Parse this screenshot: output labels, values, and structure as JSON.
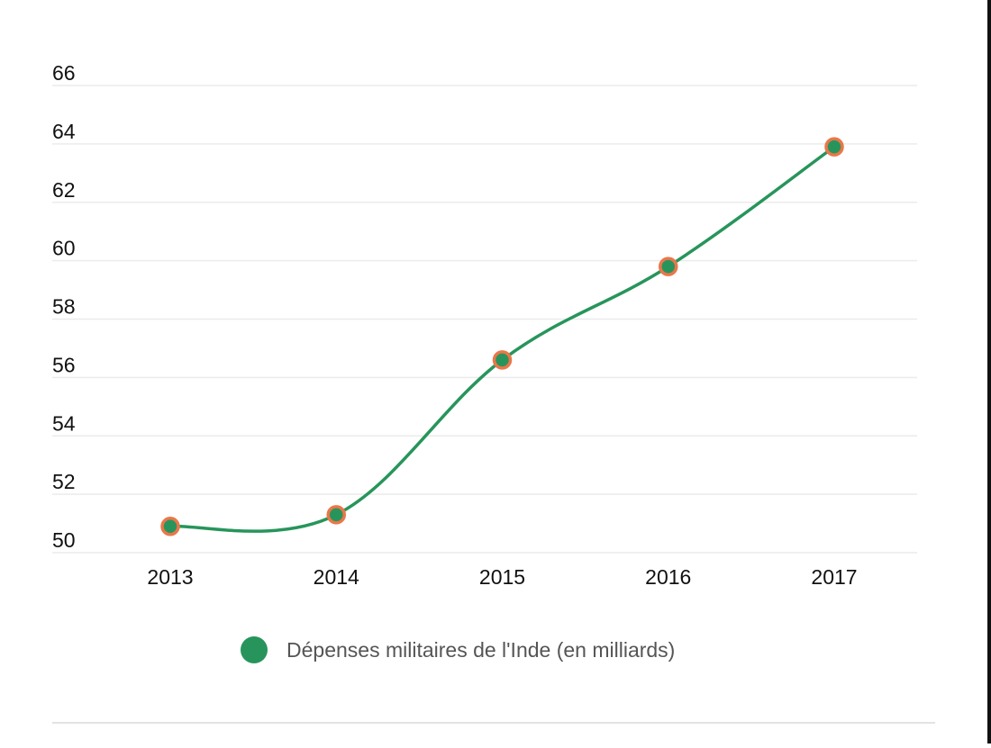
{
  "chart_data": {
    "type": "line",
    "categories": [
      "2013",
      "2014",
      "2015",
      "2016",
      "2017"
    ],
    "series": [
      {
        "name": "Dépenses militaires de l'Inde (en milliards)",
        "values": [
          50.9,
          51.3,
          56.6,
          59.8,
          63.9
        ]
      }
    ],
    "y_ticks": [
      "50",
      "52",
      "54",
      "56",
      "58",
      "60",
      "62",
      "64",
      "66"
    ],
    "ylim": [
      50,
      66
    ],
    "grid": true,
    "legend_position": "bottom-center",
    "colors": {
      "line": "#27955b",
      "marker_fill": "#27955b",
      "marker_stroke": "#e9774a",
      "grid": "#ebebeb",
      "text": "#111111",
      "legend_text": "#555555"
    }
  }
}
